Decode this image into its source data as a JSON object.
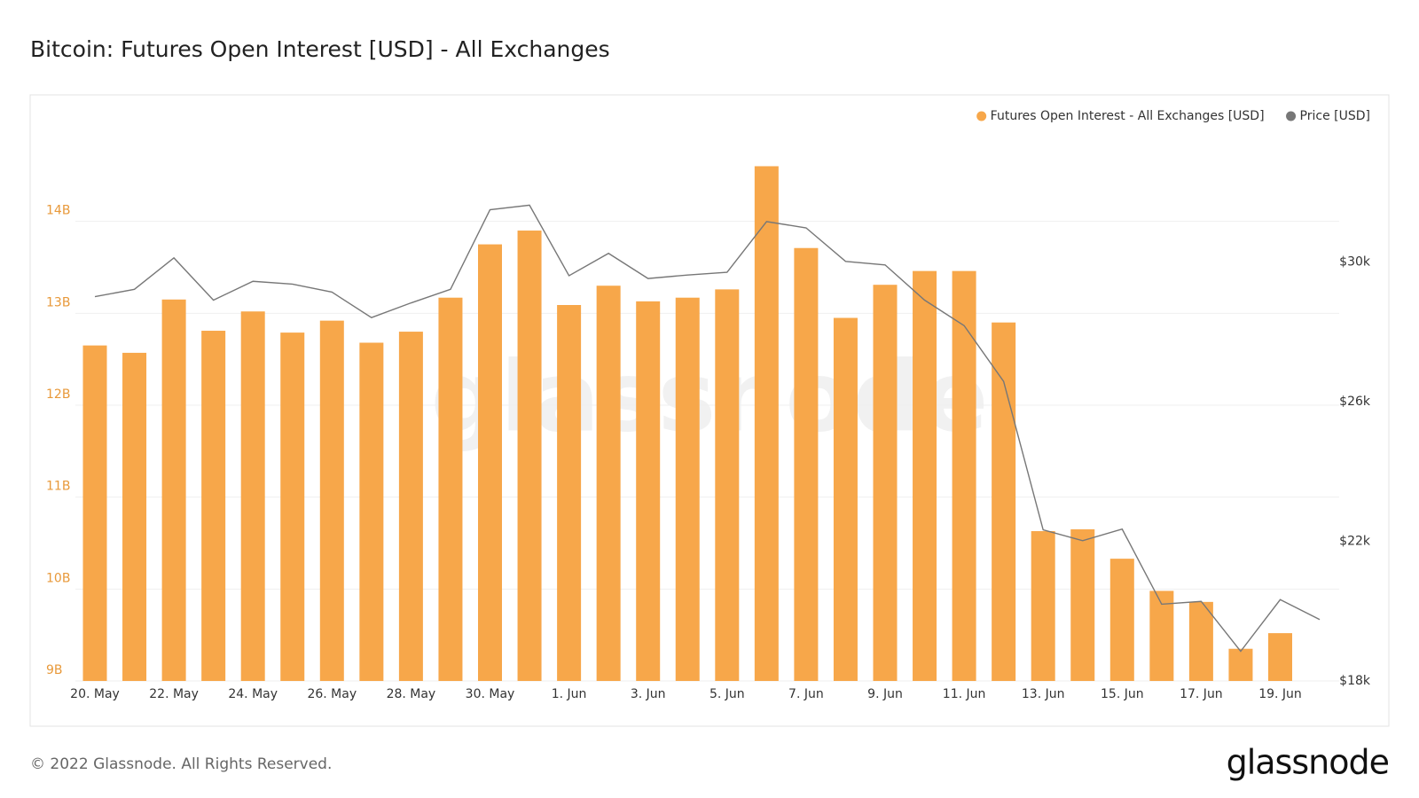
{
  "chart_data": {
    "type": "bar",
    "title": "Bitcoin: Futures Open Interest [USD] - All Exchanges",
    "categories": [
      "20. May",
      null,
      "22. May",
      null,
      "24. May",
      null,
      "26. May",
      null,
      "28. May",
      null,
      "30. May",
      null,
      "1. Jun",
      null,
      "3. Jun",
      null,
      "5. Jun",
      null,
      "7. Jun",
      null,
      "9. Jun",
      null,
      "11. Jun",
      null,
      "13. Jun",
      null,
      "15. Jun",
      null,
      "17. Jun",
      null,
      "19. Jun",
      null
    ],
    "series": [
      {
        "name": "Futures Open Interest - All Exchanges [USD]",
        "type": "bar",
        "color": "#f7a74a",
        "values": [
          12.65,
          12.57,
          13.15,
          12.81,
          13.02,
          12.79,
          12.92,
          12.68,
          12.8,
          13.17,
          13.75,
          13.9,
          13.09,
          13.3,
          13.13,
          13.17,
          13.26,
          14.6,
          13.71,
          12.95,
          13.31,
          13.46,
          13.46,
          12.9,
          10.63,
          10.65,
          10.33,
          9.98,
          9.86,
          9.35,
          9.52,
          null
        ]
      },
      {
        "name": "Price [USD]",
        "type": "line",
        "color": "#777777",
        "axis": "y2",
        "values": [
          29.01,
          29.22,
          30.12,
          28.91,
          29.45,
          29.37,
          29.14,
          28.41,
          28.83,
          29.22,
          31.5,
          31.63,
          29.61,
          30.25,
          29.53,
          29.63,
          29.71,
          31.16,
          30.98,
          30.02,
          29.92,
          28.91,
          28.18,
          26.58,
          22.33,
          22.02,
          22.35,
          20.2,
          20.28,
          18.85,
          20.33,
          19.76
        ]
      }
    ],
    "ylim": [
      9,
      15
    ],
    "yticks": [
      {
        "value": 9,
        "label": "9B"
      },
      {
        "value": 10,
        "label": "10B"
      },
      {
        "value": 11,
        "label": "11B"
      },
      {
        "value": 12,
        "label": "12B"
      },
      {
        "value": 13,
        "label": "13B"
      },
      {
        "value": 14,
        "label": "14B"
      }
    ],
    "y2lim": [
      18,
      33.8
    ],
    "y2ticks": [
      {
        "value": 18,
        "label": "$18k"
      },
      {
        "value": 22,
        "label": "$22k"
      },
      {
        "value": 26,
        "label": "$26k"
      },
      {
        "value": 30,
        "label": "$30k"
      }
    ],
    "grid": true,
    "legend": "top-right"
  },
  "watermark": "glassnode",
  "footer": {
    "copyright": "© 2022 Glassnode. All Rights Reserved.",
    "logo": "glassnode"
  }
}
